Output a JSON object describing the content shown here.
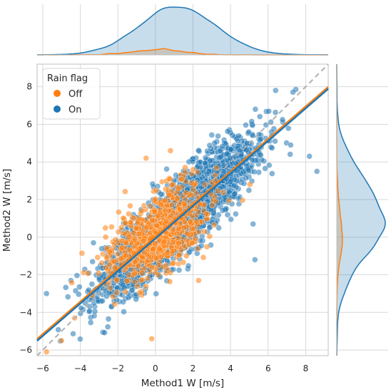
{
  "chart_data": {
    "type": "scatter",
    "subtype": "jointplot",
    "xlabel": "Method1 W [m/s]",
    "ylabel": "Method2 W [m/s]",
    "xlim": [
      -6.3,
      9.2
    ],
    "ylim": [
      -6.3,
      9.2
    ],
    "xticks": [
      -6,
      -4,
      -2,
      0,
      2,
      4,
      6,
      8
    ],
    "yticks": [
      -6,
      -4,
      -2,
      0,
      2,
      4,
      6,
      8
    ],
    "grid": true,
    "legend": {
      "title": "Rain flag",
      "placement": "top-left",
      "entries": [
        {
          "label": "Off",
          "color": "#ff7f0e"
        },
        {
          "label": "On",
          "color": "#1f77b4"
        }
      ]
    },
    "identity_line": {
      "style": "dashed",
      "color": "#b0b0b0",
      "x": [
        -6.3,
        9.2
      ],
      "y": [
        -6.3,
        9.2
      ]
    },
    "series": [
      {
        "name": "On",
        "color": "#1f77b4",
        "approx_cloud": {
          "x_center": 1.2,
          "x_sd": 2.0,
          "slope": 0.87,
          "intercept": 0.0,
          "residual_sd": 0.95
        },
        "fit_line": {
          "x": [
            -6.3,
            9.2
          ],
          "y": [
            -5.5,
            7.9
          ]
        },
        "x_marginal_peak": 0.8,
        "y_marginal_peak": 0.9
      },
      {
        "name": "Off",
        "color": "#ff7f0e",
        "approx_cloud": {
          "x_center": 0.1,
          "x_sd": 1.3,
          "slope": 0.6,
          "intercept": 0.1,
          "residual_sd": 1.1
        },
        "fit_line": {
          "x": [
            -6.3,
            9.2
          ],
          "y": [
            -5.4,
            8.0
          ]
        },
        "x_marginal_peak": -0.1,
        "y_marginal_peak": 0.1
      }
    ],
    "sample_points": [
      {
        "series": "Off",
        "x": -5.0,
        "y": -5.5
      },
      {
        "series": "Off",
        "x": -5.8,
        "y": -6.1
      },
      {
        "series": "Off",
        "x": -4.3,
        "y": -4.3
      },
      {
        "series": "Off",
        "x": -0.2,
        "y": -5.4
      },
      {
        "series": "Off",
        "x": 0.8,
        "y": 4.6
      },
      {
        "series": "Off",
        "x": -0.5,
        "y": 4.2
      },
      {
        "series": "Off",
        "x": 2.0,
        "y": 3.6
      },
      {
        "series": "Off",
        "x": -2.8,
        "y": -0.9
      },
      {
        "series": "Off",
        "x": 2.3,
        "y": -2.3
      },
      {
        "series": "On",
        "x": 8.2,
        "y": 4.3
      },
      {
        "series": "On",
        "x": 8.6,
        "y": 3.5
      },
      {
        "series": "On",
        "x": -5.8,
        "y": -3.0
      },
      {
        "series": "On",
        "x": -4.5,
        "y": -2.3
      },
      {
        "series": "On",
        "x": 6.4,
        "y": 7.8
      },
      {
        "series": "On",
        "x": -3.3,
        "y": -0.3
      },
      {
        "series": "On",
        "x": 5.2,
        "y": 0.7
      },
      {
        "series": "On",
        "x": 5.3,
        "y": -1.2
      },
      {
        "series": "On",
        "x": 7.2,
        "y": 4.9
      }
    ]
  }
}
